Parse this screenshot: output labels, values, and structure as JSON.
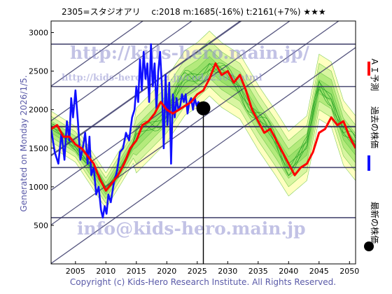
{
  "chart_data": {
    "type": "line",
    "title": "2305=スタジオアリ　 c:2018  m:1685(-16%)  t:2161(+7%)  ★★★",
    "side_label_left": "Generated on Monday 2026/1/5.",
    "footer": "Copyright (c) Kids-Hero Research Institute. All Rights Reserved.",
    "watermarks": [
      "http://kids-hero.main.jp/",
      "http://kids-hero.main.jp/code2305.html",
      "info@kids-hero.main.jp"
    ],
    "xlim": [
      2001,
      2051
    ],
    "ylim": [
      0,
      3150
    ],
    "x_ticks": [
      2005,
      2010,
      2015,
      2020,
      2025,
      2030,
      2035,
      2040,
      2045,
      2050
    ],
    "y_ticks": [
      500,
      1000,
      1500,
      2000,
      2500,
      3000
    ],
    "horizontal_levels": [
      600,
      1250,
      1780,
      2300,
      2850
    ],
    "channel_lines": {
      "slope": 56,
      "offsets": [
        -1550,
        -1050,
        -600,
        -150,
        300,
        750
      ]
    },
    "current_marker": {
      "x": 2026.0,
      "y": 2018
    },
    "legend": [
      {
        "name": "ＡＩ予測",
        "color": "#ff0000"
      },
      {
        "name": "過去の株価",
        "color": "#1010ff"
      },
      {
        "name": "最新の株価",
        "color": "#000000"
      }
    ],
    "series": [
      {
        "name": "過去の株価",
        "color": "#1010ff",
        "x": [
          2001.0,
          2001.6,
          2002.2,
          2002.7,
          2003.2,
          2003.6,
          2004.0,
          2004.3,
          2004.6,
          2005.0,
          2005.4,
          2005.8,
          2006.2,
          2006.6,
          2007.0,
          2007.3,
          2007.6,
          2008.0,
          2008.4,
          2008.8,
          2009.2,
          2009.5,
          2009.8,
          2010.1,
          2010.4,
          2010.8,
          2011.3,
          2011.8,
          2012.3,
          2012.8,
          2013.3,
          2013.8,
          2014.3,
          2014.7,
          2015.0,
          2015.3,
          2015.6,
          2015.9,
          2016.2,
          2016.5,
          2016.8,
          2017.1,
          2017.4,
          2017.7,
          2018.0,
          2018.3,
          2018.6,
          2018.9,
          2019.2,
          2019.5,
          2019.8,
          2020.1,
          2020.4,
          2020.7,
          2021.0,
          2021.3,
          2021.6,
          2021.9,
          2022.2,
          2022.5,
          2022.8,
          2023.1,
          2023.4,
          2023.7,
          2024.0,
          2024.3,
          2024.6,
          2024.9,
          2025.2,
          2025.5,
          2025.8,
          2026.0
        ],
        "values": [
          1750,
          1450,
          1300,
          1700,
          1350,
          1850,
          1600,
          2150,
          1900,
          2250,
          1850,
          1350,
          1500,
          1700,
          1300,
          1650,
          1150,
          1250,
          900,
          1000,
          700,
          600,
          750,
          650,
          900,
          800,
          1050,
          1200,
          1450,
          1500,
          1700,
          1600,
          1900,
          2000,
          2300,
          2100,
          2650,
          2250,
          2750,
          2400,
          2600,
          2100,
          2850,
          2300,
          2600,
          2000,
          2500,
          2750,
          2300,
          1500,
          2450,
          1800,
          2350,
          1300,
          2200,
          1900,
          2150,
          2000,
          2050,
          2200,
          2100,
          2200,
          1950,
          2100,
          2150,
          2000,
          2150,
          2050,
          2100,
          2050,
          2000,
          2018
        ]
      },
      {
        "name": "ＡＩ予測",
        "color": "#ff0000",
        "x": [
          2001.0,
          2002.0,
          2003.0,
          2004.0,
          2005.0,
          2006.0,
          2007.0,
          2008.0,
          2009.0,
          2010.0,
          2011.0,
          2012.0,
          2013.0,
          2014.0,
          2015.0,
          2016.0,
          2017.0,
          2018.0,
          2019.0,
          2020.0,
          2021.0,
          2022.0,
          2023.0,
          2024.0,
          2025.0,
          2026.0,
          2027.0,
          2028.0,
          2029.0,
          2030.0,
          2031.0,
          2032.0,
          2033.0,
          2034.0,
          2035.0,
          2036.0,
          2037.0,
          2038.0,
          2039.0,
          2040.0,
          2041.0,
          2042.0,
          2043.0,
          2044.0,
          2045.0,
          2046.0,
          2047.0,
          2048.0,
          2049.0,
          2050.0,
          2051.0
        ],
        "values": [
          1750,
          1800,
          1650,
          1650,
          1550,
          1500,
          1400,
          1300,
          1100,
          950,
          1050,
          1150,
          1300,
          1500,
          1600,
          1800,
          1850,
          1950,
          2100,
          2000,
          1950,
          2000,
          2050,
          2100,
          2200,
          2250,
          2400,
          2600,
          2450,
          2500,
          2350,
          2450,
          2250,
          2000,
          1850,
          1700,
          1750,
          1600,
          1450,
          1300,
          1150,
          1250,
          1300,
          1450,
          1700,
          1750,
          1900,
          1800,
          1850,
          1650,
          1500
        ]
      }
    ],
    "band_center": {
      "x": [
        2001,
        2005,
        2010,
        2015,
        2020,
        2023,
        2025,
        2027,
        2029,
        2032,
        2035,
        2038,
        2040,
        2043,
        2045,
        2047,
        2049,
        2051
      ],
      "values": [
        1750,
        1550,
        950,
        1600,
        2000,
        2350,
        2450,
        2600,
        2450,
        2300,
        1900,
        1550,
        1300,
        1500,
        2300,
        2200,
        1700,
        1500
      ]
    }
  }
}
